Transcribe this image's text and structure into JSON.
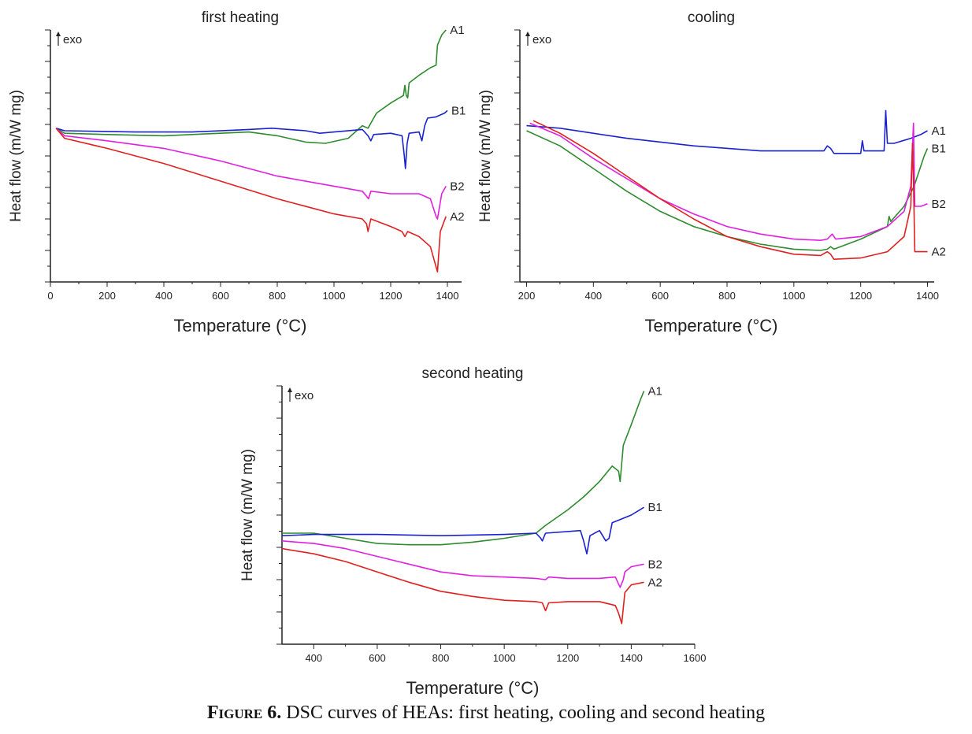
{
  "figure": {
    "caption_label": "Figure 6.",
    "caption_text": "DSC curves of HEAs: first heating, cooling and second heating"
  },
  "chart_data": [
    {
      "id": "first-heating",
      "type": "line",
      "title": "first heating",
      "xlabel": "Temperature (°C)",
      "ylabel": "Heat flow (m/W mg)",
      "exo_label": "exo",
      "xlim": [
        0,
        1450
      ],
      "ylim": [
        0,
        100
      ],
      "xticks": [
        0,
        200,
        400,
        600,
        800,
        1000,
        1200,
        1400
      ],
      "y_tick_labels": false,
      "grid": false,
      "series": [
        {
          "name": "A1",
          "color": "#2e8b2e",
          "points": [
            [
              20,
              61
            ],
            [
              50,
              59
            ],
            [
              200,
              58.5
            ],
            [
              400,
              58
            ],
            [
              600,
              59
            ],
            [
              700,
              59.5
            ],
            [
              800,
              58
            ],
            [
              900,
              55.5
            ],
            [
              970,
              55
            ],
            [
              1050,
              57
            ],
            [
              1100,
              62
            ],
            [
              1120,
              61
            ],
            [
              1130,
              63
            ],
            [
              1150,
              67
            ],
            [
              1200,
              71
            ],
            [
              1245,
              74
            ],
            [
              1250,
              78
            ],
            [
              1255,
              74
            ],
            [
              1260,
              73
            ],
            [
              1265,
              79
            ],
            [
              1300,
              82
            ],
            [
              1340,
              85
            ],
            [
              1350,
              85.5
            ],
            [
              1360,
              86
            ],
            [
              1365,
              94
            ],
            [
              1380,
              98
            ],
            [
              1395,
              100
            ]
          ]
        },
        {
          "name": "B1",
          "color": "#1a22cc",
          "points": [
            [
              20,
              61
            ],
            [
              50,
              60
            ],
            [
              300,
              59.5
            ],
            [
              500,
              59.5
            ],
            [
              700,
              60.5
            ],
            [
              780,
              61
            ],
            [
              900,
              60
            ],
            [
              950,
              59
            ],
            [
              1000,
              59.5
            ],
            [
              1100,
              60.5
            ],
            [
              1120,
              58
            ],
            [
              1130,
              56
            ],
            [
              1140,
              58.5
            ],
            [
              1200,
              59
            ],
            [
              1240,
              58
            ],
            [
              1248,
              50
            ],
            [
              1252,
              45
            ],
            [
              1258,
              55
            ],
            [
              1265,
              59
            ],
            [
              1300,
              59.5
            ],
            [
              1310,
              56
            ],
            [
              1320,
              62
            ],
            [
              1330,
              65
            ],
            [
              1360,
              65.5
            ],
            [
              1390,
              67
            ],
            [
              1400,
              68
            ]
          ]
        },
        {
          "name": "B2",
          "color": "#e020e0",
          "points": [
            [
              20,
              61
            ],
            [
              50,
              58
            ],
            [
              200,
              56
            ],
            [
              400,
              53
            ],
            [
              600,
              48
            ],
            [
              800,
              42
            ],
            [
              1000,
              38
            ],
            [
              1100,
              36
            ],
            [
              1115,
              34
            ],
            [
              1122,
              33
            ],
            [
              1130,
              36
            ],
            [
              1200,
              35
            ],
            [
              1300,
              35
            ],
            [
              1340,
              33
            ],
            [
              1360,
              26
            ],
            [
              1365,
              25
            ],
            [
              1380,
              35
            ],
            [
              1395,
              38
            ]
          ]
        },
        {
          "name": "A2",
          "color": "#e02020",
          "points": [
            [
              20,
              61
            ],
            [
              50,
              57
            ],
            [
              200,
              53
            ],
            [
              400,
              47
            ],
            [
              600,
              40
            ],
            [
              800,
              33
            ],
            [
              1000,
              27
            ],
            [
              1100,
              25
            ],
            [
              1115,
              23
            ],
            [
              1120,
              20
            ],
            [
              1130,
              25
            ],
            [
              1200,
              22
            ],
            [
              1240,
              20
            ],
            [
              1250,
              18
            ],
            [
              1260,
              20
            ],
            [
              1300,
              18
            ],
            [
              1340,
              14
            ],
            [
              1360,
              6
            ],
            [
              1365,
              4
            ],
            [
              1375,
              20
            ],
            [
              1395,
              26
            ]
          ]
        }
      ],
      "annotations": [
        "A1",
        "B1",
        "B2",
        "A2"
      ]
    },
    {
      "id": "cooling",
      "type": "line",
      "title": "cooling",
      "xlabel": "Temperature (°C)",
      "ylabel": "Heat flow (m/W mg)",
      "exo_label": "exo",
      "xlim": [
        180,
        1420
      ],
      "ylim": [
        0,
        100
      ],
      "xticks": [
        200,
        400,
        600,
        800,
        1000,
        1200,
        1400
      ],
      "y_tick_labels": false,
      "grid": false,
      "series": [
        {
          "name": "A1",
          "color": "#1a22cc",
          "points": [
            [
              200,
              62
            ],
            [
              300,
              61
            ],
            [
              500,
              57
            ],
            [
              700,
              54
            ],
            [
              900,
              52
            ],
            [
              1090,
              52
            ],
            [
              1100,
              54
            ],
            [
              1110,
              53
            ],
            [
              1120,
              51
            ],
            [
              1200,
              51
            ],
            [
              1205,
              56
            ],
            [
              1210,
              52
            ],
            [
              1270,
              52
            ],
            [
              1275,
              68
            ],
            [
              1280,
              55
            ],
            [
              1300,
              55
            ],
            [
              1350,
              57
            ],
            [
              1380,
              58.5
            ],
            [
              1400,
              60
            ]
          ]
        },
        {
          "name": "B1",
          "color": "#2e8b2e",
          "points": [
            [
              200,
              60
            ],
            [
              300,
              54
            ],
            [
              400,
              45
            ],
            [
              500,
              36
            ],
            [
              600,
              28
            ],
            [
              700,
              22
            ],
            [
              800,
              18
            ],
            [
              900,
              15
            ],
            [
              1000,
              13
            ],
            [
              1080,
              12.5
            ],
            [
              1100,
              13
            ],
            [
              1110,
              14
            ],
            [
              1120,
              13
            ],
            [
              1200,
              17
            ],
            [
              1280,
              22
            ],
            [
              1285,
              26
            ],
            [
              1290,
              24
            ],
            [
              1330,
              30
            ],
            [
              1360,
              38
            ],
            [
              1390,
              50
            ],
            [
              1400,
              53
            ]
          ]
        },
        {
          "name": "B2",
          "color": "#e020e0",
          "points": [
            [
              210,
              63
            ],
            [
              300,
              58
            ],
            [
              400,
              49
            ],
            [
              500,
              41
            ],
            [
              600,
              33
            ],
            [
              700,
              27
            ],
            [
              800,
              22
            ],
            [
              900,
              19
            ],
            [
              1000,
              17
            ],
            [
              1080,
              16.5
            ],
            [
              1100,
              17
            ],
            [
              1115,
              19
            ],
            [
              1125,
              17
            ],
            [
              1200,
              18
            ],
            [
              1280,
              22
            ],
            [
              1330,
              28
            ],
            [
              1350,
              38
            ],
            [
              1358,
              63
            ],
            [
              1362,
              30
            ],
            [
              1380,
              30
            ],
            [
              1400,
              31
            ]
          ]
        },
        {
          "name": "A2",
          "color": "#e02020",
          "points": [
            [
              220,
              64
            ],
            [
              300,
              59
            ],
            [
              400,
              51
            ],
            [
              500,
              42
            ],
            [
              600,
              33
            ],
            [
              700,
              25
            ],
            [
              800,
              18
            ],
            [
              900,
              14
            ],
            [
              1000,
              11
            ],
            [
              1080,
              10.5
            ],
            [
              1100,
              12
            ],
            [
              1110,
              11
            ],
            [
              1120,
              9
            ],
            [
              1200,
              9.5
            ],
            [
              1280,
              12
            ],
            [
              1330,
              18
            ],
            [
              1350,
              30
            ],
            [
              1355,
              55
            ],
            [
              1358,
              40
            ],
            [
              1362,
              12
            ],
            [
              1380,
              12
            ],
            [
              1400,
              12
            ]
          ]
        }
      ],
      "annotations": [
        "A1",
        "B1",
        "B2",
        "A2"
      ]
    },
    {
      "id": "second-heating",
      "type": "line",
      "title": "second heating",
      "xlabel": "Temperature (°C)",
      "ylabel": "Heat flow (m/W mg)",
      "exo_label": "exo",
      "xlim": [
        300,
        1600
      ],
      "ylim": [
        0,
        100
      ],
      "xticks": [
        400,
        600,
        800,
        1000,
        1200,
        1400,
        1600
      ],
      "y_tick_labels": false,
      "grid": false,
      "series": [
        {
          "name": "A1",
          "color": "#2e8b2e",
          "points": [
            [
              300,
              43
            ],
            [
              400,
              43
            ],
            [
              500,
              41
            ],
            [
              600,
              39
            ],
            [
              700,
              38.5
            ],
            [
              800,
              38.5
            ],
            [
              900,
              39.5
            ],
            [
              1000,
              41
            ],
            [
              1100,
              43
            ],
            [
              1130,
              46
            ],
            [
              1200,
              52
            ],
            [
              1250,
              57
            ],
            [
              1300,
              63
            ],
            [
              1340,
              69
            ],
            [
              1360,
              67
            ],
            [
              1365,
              63
            ],
            [
              1375,
              77
            ],
            [
              1400,
              85
            ],
            [
              1430,
              95
            ],
            [
              1440,
              98
            ]
          ]
        },
        {
          "name": "B1",
          "color": "#1a22cc",
          "points": [
            [
              300,
              42
            ],
            [
              400,
              42.5
            ],
            [
              600,
              42.5
            ],
            [
              800,
              42
            ],
            [
              1000,
              42.5
            ],
            [
              1100,
              43
            ],
            [
              1115,
              41
            ],
            [
              1120,
              40
            ],
            [
              1130,
              43
            ],
            [
              1240,
              44
            ],
            [
              1250,
              40
            ],
            [
              1260,
              35
            ],
            [
              1270,
              42
            ],
            [
              1300,
              44
            ],
            [
              1320,
              40
            ],
            [
              1330,
              41
            ],
            [
              1340,
              47
            ],
            [
              1400,
              50
            ],
            [
              1440,
              53
            ]
          ]
        },
        {
          "name": "B2",
          "color": "#e020e0",
          "points": [
            [
              300,
              40
            ],
            [
              400,
              39
            ],
            [
              500,
              37
            ],
            [
              600,
              34
            ],
            [
              700,
              31
            ],
            [
              800,
              28
            ],
            [
              900,
              26.5
            ],
            [
              1000,
              26
            ],
            [
              1100,
              25.5
            ],
            [
              1130,
              25
            ],
            [
              1140,
              26
            ],
            [
              1200,
              25.5
            ],
            [
              1300,
              25.5
            ],
            [
              1350,
              26
            ],
            [
              1365,
              22
            ],
            [
              1375,
              25
            ],
            [
              1380,
              28
            ],
            [
              1400,
              30
            ],
            [
              1440,
              31
            ]
          ]
        },
        {
          "name": "A2",
          "color": "#e02020",
          "points": [
            [
              300,
              37
            ],
            [
              400,
              35
            ],
            [
              500,
              32
            ],
            [
              600,
              28
            ],
            [
              700,
              24
            ],
            [
              800,
              20.5
            ],
            [
              900,
              18.5
            ],
            [
              1000,
              17
            ],
            [
              1100,
              16.5
            ],
            [
              1120,
              16
            ],
            [
              1130,
              13
            ],
            [
              1140,
              16
            ],
            [
              1200,
              16.5
            ],
            [
              1300,
              16.5
            ],
            [
              1350,
              15
            ],
            [
              1360,
              12
            ],
            [
              1370,
              8
            ],
            [
              1380,
              20
            ],
            [
              1400,
              23
            ],
            [
              1440,
              24
            ]
          ]
        }
      ],
      "annotations": [
        "A1",
        "B1",
        "B2",
        "A2"
      ]
    }
  ]
}
